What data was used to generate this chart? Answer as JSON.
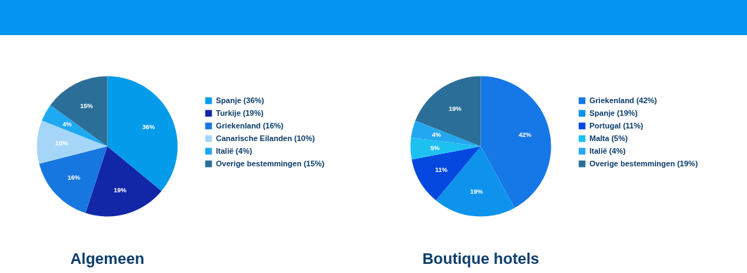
{
  "chart_data": [
    {
      "type": "pie",
      "title": "Algemeen",
      "categories": [
        "Spanje (36%)",
        "Turkije (19%)",
        "Griekenland (16%)",
        "Canarische Eilanden (10%)",
        "Italië (4%)",
        "Overige bestemmingen (15%)"
      ],
      "values": [
        36,
        19,
        16,
        10,
        4,
        15
      ],
      "colors": [
        "#049bea",
        "#1226a8",
        "#1677e0",
        "#a6d6f7",
        "#1fa9f2",
        "#2b6f98"
      ],
      "value_labels": [
        "36%",
        "19%",
        "16%",
        "10%",
        "4%",
        "15%"
      ],
      "legend": "right"
    },
    {
      "type": "pie",
      "title": "Boutique hotels",
      "categories": [
        "Griekenland (42%)",
        "Spanje (19%)",
        "Portugal (11%)",
        "Malta (5%)",
        "Italië (4%)",
        "Overige bestemmingen (19%)"
      ],
      "values": [
        42,
        19,
        11,
        5,
        4,
        19
      ],
      "colors": [
        "#1677e6",
        "#0d93ec",
        "#0548e0",
        "#1ec0f0",
        "#23a8f0",
        "#2b6f98"
      ],
      "value_labels": [
        "42%",
        "19%",
        "11%",
        "5%",
        "4%",
        "19%"
      ],
      "legend": "right"
    }
  ]
}
